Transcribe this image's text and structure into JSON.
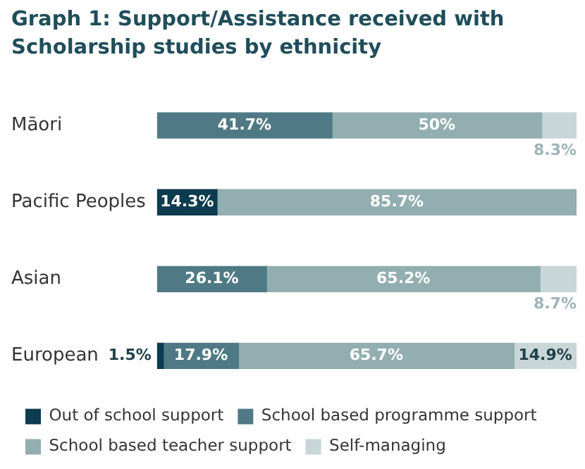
{
  "chart_data": {
    "type": "bar",
    "title": "Graph 1: Support/Assistance received with Scholarship studies by ethnicity",
    "orientation": "horizontal",
    "stacked": true,
    "categories": [
      "Māori",
      "Pacific Peoples",
      "Asian",
      "European"
    ],
    "xlim": [
      0,
      100
    ],
    "tick_labels": "y",
    "grid": false,
    "legend": "bottom",
    "series": [
      {
        "name": "Out of school support",
        "color": "#0d3b4f",
        "values": [
          null,
          14.3,
          null,
          1.5
        ],
        "value_labels": [
          null,
          "14.3%",
          null,
          "1.5%"
        ]
      },
      {
        "name": "School based programme support",
        "color": "#4f7a85",
        "values": [
          41.7,
          null,
          26.1,
          17.9
        ],
        "value_labels": [
          "41.7%",
          null,
          "26.1%",
          "17.9%"
        ]
      },
      {
        "name": "School based teacher support",
        "color": "#92aeb1",
        "values": [
          50,
          85.7,
          65.2,
          65.7
        ],
        "value_labels": [
          "50%",
          "85.7%",
          "65.2%",
          "65.7%"
        ]
      },
      {
        "name": "Self-managing",
        "color": "#c8d6d8",
        "values": [
          8.3,
          null,
          8.7,
          14.9
        ],
        "value_labels": [
          "8.3%",
          null,
          "8.7%",
          "14.9%"
        ]
      }
    ]
  }
}
